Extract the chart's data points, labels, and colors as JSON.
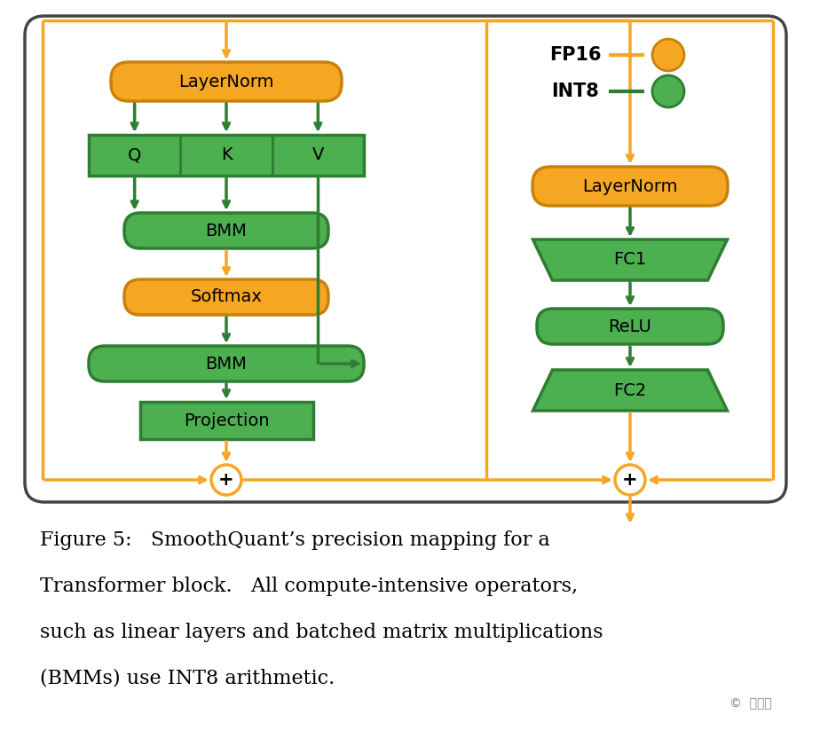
{
  "orange_fill": "#F5A623",
  "orange_edge": "#C8820A",
  "green_fill": "#4CAF50",
  "green_edge": "#2E7D32",
  "arrow_orange": "#F5A623",
  "arrow_green": "#2E7D32",
  "bg_color": "#FFFFFF",
  "outer_edge": "#444444",
  "fp16_label": "FP16",
  "int8_label": "INT8",
  "caption_line1": "Figure 5:   SmoothQuant’s precision mapping for a",
  "caption_line2": "Transformer block.   All compute-intensive operators,",
  "caption_line3": "such as linear layers and batched matrix multiplications",
  "caption_line4": "(BMMs) use INT8 arithmetic.",
  "watermark": "©  新智元"
}
